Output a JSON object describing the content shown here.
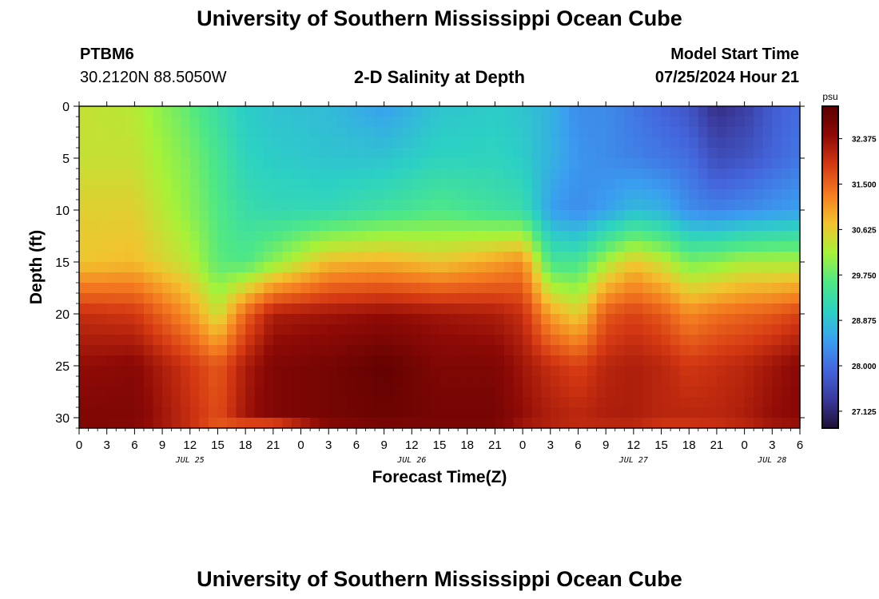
{
  "header": {
    "title": "University of Southern Mississippi Ocean Cube",
    "station_id": "PTBM6",
    "station_coords": "30.2120N  88.5050W",
    "subtitle": "2-D Salinity at Depth",
    "model_label": "Model Start Time",
    "model_time": "07/25/2024 Hour 21"
  },
  "footer": {
    "title": "University of Southern Mississippi Ocean Cube"
  },
  "colors": {
    "colormap": [
      "#1e0f35",
      "#3a3a9c",
      "#4466dd",
      "#3a9ff0",
      "#2cd1c3",
      "#4fe885",
      "#a7f238",
      "#f3c32e",
      "#f47b20",
      "#d53913",
      "#8e0a06",
      "#5a0000"
    ]
  },
  "chart_data": {
    "type": "heatmap",
    "title": "2-D Salinity at Depth",
    "xlabel": "Forecast Time(Z)",
    "ylabel": "Depth (ft)",
    "x_unit": "hours since 07/25 00Z",
    "xlim": [
      0,
      78
    ],
    "ylim": [
      0,
      31
    ],
    "x_ticks": [
      0,
      3,
      6,
      9,
      12,
      15,
      18,
      21,
      24,
      27,
      30,
      33,
      36,
      39,
      42,
      45,
      48,
      51,
      54,
      57,
      60,
      63,
      66,
      69,
      72,
      75,
      78
    ],
    "x_tick_labels": [
      "0",
      "3",
      "6",
      "9",
      "12",
      "15",
      "18",
      "21",
      "0",
      "3",
      "6",
      "9",
      "12",
      "15",
      "18",
      "21",
      "0",
      "3",
      "6",
      "9",
      "12",
      "15",
      "18",
      "21",
      "0",
      "3",
      "6"
    ],
    "date_labels": [
      {
        "label": "JUL 25",
        "x": 12
      },
      {
        "label": "JUL 26",
        "x": 36
      },
      {
        "label": "JUL 27",
        "x": 60
      },
      {
        "label": "JUL 28",
        "x": 75
      }
    ],
    "y_ticks": [
      0,
      5,
      10,
      15,
      20,
      25,
      30
    ],
    "y_tick_labels": [
      "0",
      "5",
      "10",
      "15",
      "20",
      "25",
      "30"
    ],
    "colorbar": {
      "unit": "psu",
      "min": 26.8,
      "max": 33.0,
      "ticks": [
        27.125,
        28.0,
        28.875,
        29.75,
        30.625,
        31.5,
        32.375
      ],
      "tick_labels": [
        "27.125",
        "28.000",
        "28.875",
        "29.750",
        "30.625",
        "31.500",
        "32.375"
      ]
    },
    "depths": [
      0,
      5,
      10,
      15,
      20,
      25,
      30,
      31
    ],
    "profiles": [
      {
        "t": 0,
        "values": [
          30.4,
          30.4,
          30.6,
          30.7,
          32.0,
          32.4,
          32.6,
          32.6
        ]
      },
      {
        "t": 6,
        "values": [
          30.3,
          30.4,
          30.6,
          30.8,
          31.9,
          32.5,
          32.6,
          32.5
        ]
      },
      {
        "t": 12,
        "values": [
          29.7,
          29.9,
          30.0,
          30.3,
          31.1,
          31.9,
          32.0,
          32.0
        ]
      },
      {
        "t": 15,
        "values": [
          29.3,
          29.5,
          29.6,
          29.7,
          30.4,
          31.6,
          31.7,
          31.5
        ]
      },
      {
        "t": 18,
        "values": [
          29.0,
          29.1,
          29.3,
          29.6,
          31.5,
          32.2,
          32.3,
          31.3
        ]
      },
      {
        "t": 21,
        "values": [
          28.9,
          29.0,
          29.2,
          30.0,
          32.2,
          32.6,
          32.6,
          31.1
        ]
      },
      {
        "t": 27,
        "values": [
          28.8,
          28.9,
          29.2,
          30.8,
          32.3,
          32.7,
          32.7,
          32.4
        ]
      },
      {
        "t": 33,
        "values": [
          28.5,
          28.9,
          29.4,
          30.9,
          32.4,
          32.9,
          32.8,
          32.6
        ]
      },
      {
        "t": 39,
        "values": [
          28.9,
          29.1,
          29.6,
          30.7,
          32.3,
          32.6,
          32.7,
          32.6
        ]
      },
      {
        "t": 45,
        "values": [
          29.0,
          29.1,
          29.4,
          31.0,
          32.2,
          32.6,
          32.7,
          32.6
        ]
      },
      {
        "t": 48,
        "values": [
          28.9,
          29.0,
          29.3,
          31.2,
          32.0,
          32.3,
          32.4,
          32.2
        ]
      },
      {
        "t": 51,
        "values": [
          28.7,
          28.7,
          28.5,
          29.5,
          31.0,
          32.0,
          32.2,
          32.1
        ]
      },
      {
        "t": 54,
        "values": [
          28.3,
          28.4,
          28.3,
          29.5,
          30.6,
          31.8,
          32.1,
          32.0
        ]
      },
      {
        "t": 57,
        "values": [
          28.3,
          28.3,
          28.5,
          30.2,
          31.6,
          32.1,
          32.2,
          32.0
        ]
      },
      {
        "t": 60,
        "values": [
          28.1,
          28.2,
          28.8,
          30.7,
          31.8,
          32.2,
          32.2,
          32.0
        ]
      },
      {
        "t": 63,
        "values": [
          27.9,
          28.1,
          28.7,
          30.4,
          31.6,
          32.1,
          32.1,
          31.8
        ]
      },
      {
        "t": 66,
        "values": [
          27.7,
          28.0,
          28.3,
          29.9,
          31.2,
          31.9,
          32.1,
          31.8
        ]
      },
      {
        "t": 69,
        "values": [
          27.2,
          27.6,
          28.2,
          30.0,
          31.4,
          32.0,
          32.1,
          31.9
        ]
      },
      {
        "t": 72,
        "values": [
          27.4,
          27.7,
          28.3,
          30.2,
          31.5,
          32.1,
          32.2,
          32.0
        ]
      },
      {
        "t": 75,
        "values": [
          27.8,
          27.9,
          28.4,
          30.2,
          31.6,
          32.3,
          32.4,
          32.2
        ]
      },
      {
        "t": 78,
        "values": [
          28.0,
          28.1,
          28.5,
          30.2,
          31.8,
          32.5,
          32.5,
          32.3
        ]
      }
    ]
  }
}
